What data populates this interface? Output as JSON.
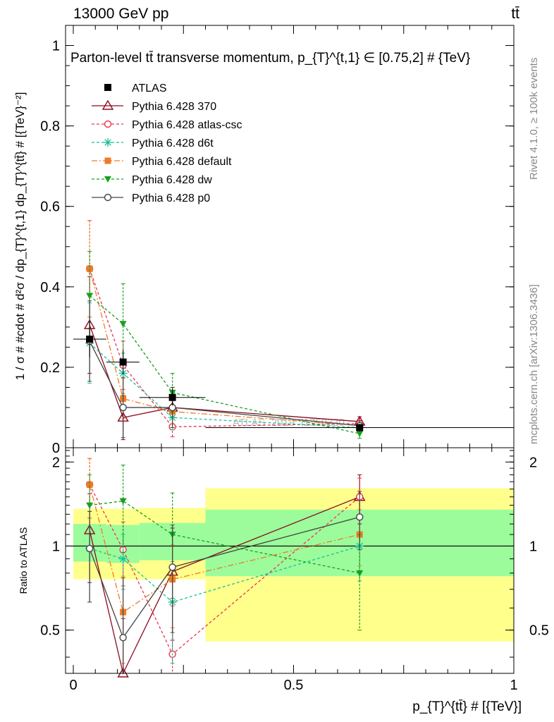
{
  "header": {
    "left": "13000 GeV pp",
    "right": "tt̄"
  },
  "side": {
    "rivet": "Rivet 4.1.0, ≥ 100k events",
    "mcplots": "mcplots.cern.ch [arXiv:1306.3436]"
  },
  "colors": {
    "atlas": "#000000",
    "p370": "#8b0a1f",
    "atlascsc": "#ec3450",
    "d6t": "#18c198",
    "default": "#f07b26",
    "dw": "#17a01f",
    "p0": "#444444",
    "band_outer": "#ffff8c",
    "band_inner": "#9cfc9c"
  },
  "chart_data": [
    {
      "type": "line",
      "title": "Parton-level tt̄ transverse momentum, p_{T}^{t,1} ∈ [0.75,2] # {TeV}",
      "ylabel": "1 / σ # #cdot # d²σ / dp_{T}^{t,1} dp_{T}^{tt̄} # [{TeV}⁻²]",
      "xlabel": "p_{T}^{tt̄} # [{TeV}]",
      "xlim": [
        0,
        1
      ],
      "ylim": [
        0,
        1.05
      ],
      "yticks": [
        "0",
        "0.2",
        "0.4",
        "0.6",
        "0.8",
        "1"
      ],
      "watermark": "ATLAS_2019_I1750330",
      "x": [
        0.037,
        0.113,
        0.225,
        0.65
      ],
      "bins": [
        [
          0,
          0.075
        ],
        [
          0.075,
          0.15
        ],
        [
          0.15,
          0.3
        ],
        [
          0.3,
          1.0
        ]
      ],
      "data": {
        "name": "ATLAS",
        "values": [
          0.27,
          0.213,
          0.125,
          0.05
        ],
        "errors": [
          0.045,
          0.03,
          0.02,
          0.01
        ]
      },
      "series": [
        {
          "name": "Pythia 6.428 370",
          "key": "p370",
          "marker": "triangle-open",
          "dash": "solid",
          "values": [
            0.305,
            0.075,
            0.1,
            0.065
          ],
          "errors": [
            0.12,
            0.055,
            0.05,
            0.012
          ]
        },
        {
          "name": "Pythia 6.428 atlas-csc",
          "key": "atlascsc",
          "marker": "circle-open",
          "dash": "4,3",
          "values": [
            0.445,
            0.205,
            0.052,
            0.06
          ],
          "errors": [
            0.12,
            0.06,
            0.025,
            0.012
          ]
        },
        {
          "name": "Pythia 6.428 d6t",
          "key": "d6t",
          "marker": "star",
          "dash": "4,3",
          "values": [
            0.26,
            0.185,
            0.075,
            0.05
          ],
          "errors": [
            0.1,
            0.05,
            0.03,
            0.012
          ]
        },
        {
          "name": "Pythia 6.428 default",
          "key": "default",
          "marker": "square",
          "dash": "8,3,2,3",
          "values": [
            0.445,
            0.122,
            0.09,
            0.055
          ],
          "errors": [
            0.12,
            0.05,
            0.03,
            0.012
          ]
        },
        {
          "name": "Pythia 6.428 dw",
          "key": "dw",
          "marker": "triangle-down",
          "dash": "4,3",
          "values": [
            0.378,
            0.308,
            0.137,
            0.035
          ],
          "errors": [
            0.11,
            0.1,
            0.048,
            0.012
          ]
        },
        {
          "name": "Pythia 6.428 p0",
          "key": "p0",
          "marker": "circle-open",
          "dash": "solid",
          "values": [
            0.265,
            0.1,
            0.1,
            0.055
          ],
          "errors": [
            0.1,
            0.075,
            0.05,
            0.012
          ]
        }
      ]
    },
    {
      "type": "line",
      "ylabel": "Ratio to ATLAS",
      "xlim": [
        0,
        1
      ],
      "ylim": [
        0.35,
        2.25
      ],
      "yticks": [
        "0.5",
        "1",
        "2"
      ],
      "xticks": [
        "0",
        "0.5",
        "1"
      ],
      "band_outer": [
        [
          0.76,
          1.36
        ],
        [
          0.76,
          1.36
        ],
        [
          0.76,
          1.37
        ],
        [
          0.455,
          1.61
        ]
      ],
      "band_inner": [
        [
          0.88,
          1.2
        ],
        [
          0.87,
          1.19
        ],
        [
          0.89,
          1.21
        ],
        [
          0.78,
          1.35
        ]
      ],
      "series": [
        {
          "key": "p370",
          "values": [
            1.14,
            0.35,
            0.81,
            1.5
          ],
          "errors": [
            0.4,
            0.2,
            0.35,
            0.3
          ]
        },
        {
          "key": "atlascsc",
          "values": [
            1.66,
            0.97,
            0.41,
            1.5
          ],
          "errors": [
            0.4,
            0.25,
            0.2,
            0.25
          ]
        },
        {
          "key": "d6t",
          "values": [
            0.98,
            0.9,
            0.63,
            1.0
          ],
          "errors": [
            0.35,
            0.2,
            0.25,
            0.25
          ]
        },
        {
          "key": "default",
          "values": [
            1.66,
            0.58,
            0.76,
            1.1
          ],
          "errors": [
            0.4,
            0.2,
            0.25,
            0.25
          ]
        },
        {
          "key": "dw",
          "values": [
            1.4,
            1.45,
            1.1,
            0.8
          ],
          "errors": [
            0.4,
            0.5,
            0.45,
            0.3
          ]
        },
        {
          "key": "p0",
          "values": [
            0.98,
            0.47,
            0.84,
            1.27
          ],
          "errors": [
            0.35,
            0.3,
            0.35,
            0.3
          ]
        }
      ]
    }
  ]
}
